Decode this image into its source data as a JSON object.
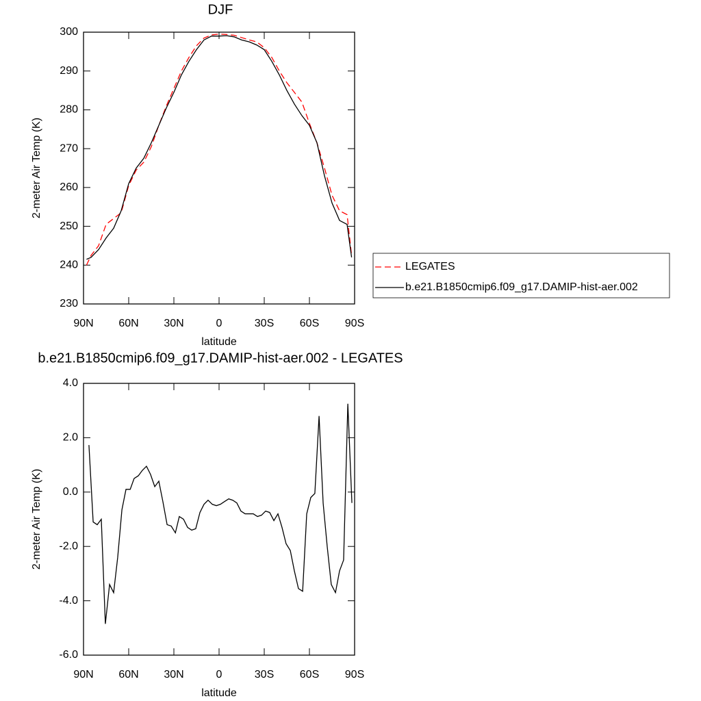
{
  "chart_data": [
    {
      "type": "line",
      "title": "DJF",
      "xlabel": "latitude",
      "ylabel": "2-meter Air Temp (K)",
      "x": [
        88,
        85,
        80,
        75,
        70,
        65,
        60,
        55,
        50,
        45,
        40,
        35,
        30,
        25,
        20,
        15,
        10,
        5,
        0,
        -5,
        -10,
        -15,
        -20,
        -25,
        -30,
        -35,
        -40,
        -45,
        -50,
        -55,
        -60,
        -65,
        -70,
        -75,
        -80,
        -85,
        -88
      ],
      "series": [
        {
          "name": "LEGATES",
          "color": "#ff0000",
          "line_style": "dashed",
          "values": [
            240,
            242.5,
            245,
            250.5,
            252,
            253.5,
            260.5,
            264.5,
            266.5,
            270.5,
            276,
            281,
            285.5,
            290,
            293.5,
            296.5,
            298.5,
            299.3,
            299.5,
            299.4,
            299.2,
            298.6,
            298,
            297.5,
            296,
            293.5,
            290,
            287,
            284.5,
            282,
            276.5,
            271.5,
            265,
            258,
            254,
            253,
            242.5
          ]
        },
        {
          "name": "b.e21.B1850cmip6.f09_g17.DAMIP-hist-aer.002",
          "color": "#000000",
          "line_style": "solid",
          "values": [
            241.5,
            242,
            244,
            247,
            249.5,
            254,
            261,
            265,
            267.5,
            271.5,
            276,
            280.5,
            284.5,
            289,
            292.5,
            295.5,
            298,
            299,
            299,
            299.1,
            298.8,
            298,
            297.5,
            296.7,
            295.5,
            292.5,
            289,
            285,
            281.5,
            278.5,
            276,
            271.5,
            263,
            256,
            251.5,
            250.5,
            242
          ]
        }
      ],
      "xlim": [
        90,
        -90
      ],
      "xticks": [
        {
          "value": 90,
          "label": "90N"
        },
        {
          "value": 60,
          "label": "60N"
        },
        {
          "value": 30,
          "label": "30N"
        },
        0,
        {
          "value": -30,
          "label": "30S"
        },
        {
          "value": -60,
          "label": "60S"
        },
        {
          "value": -90,
          "label": "90S"
        }
      ],
      "ylim": [
        230,
        300
      ],
      "yticks": [
        230,
        240,
        250,
        260,
        270,
        280,
        290,
        300
      ],
      "legend": "right"
    },
    {
      "type": "line",
      "title": "b.e21.B1850cmip6.f09_g17.DAMIP-hist-aer.002 - LEGATES",
      "xlabel": "latitude",
      "ylabel": "2-meter Air Temp (K)",
      "x": [
        86.4,
        83.6,
        80.9,
        78.2,
        75.5,
        72.7,
        70,
        67.3,
        64.5,
        61.8,
        59,
        56.4,
        53.6,
        50.9,
        48.2,
        45.5,
        42.7,
        40,
        37.3,
        34.5,
        31.8,
        29,
        26.4,
        23.6,
        20.9,
        18.2,
        15.5,
        12.7,
        10,
        7.3,
        4.5,
        1.8,
        -0.9,
        -3.6,
        -6.4,
        -9.1,
        -11.8,
        -14.5,
        -17.3,
        -20,
        -22.7,
        -25.5,
        -28.2,
        -30.9,
        -33.6,
        -36.4,
        -39.1,
        -41.8,
        -44.5,
        -47.3,
        -50,
        -52.7,
        -55.5,
        -58.2,
        -60.9,
        -63.6,
        -66.4,
        -69.1,
        -71.8,
        -74.5,
        -77.3,
        -80,
        -82.7,
        -85.5,
        -88.2
      ],
      "series": [
        {
          "name": "b.e21.B1850cmip6.f09_g17.DAMIP-hist-aer.002 - LEGATES",
          "color": "#000000",
          "line_style": "solid",
          "values": [
            1.73,
            -1.1,
            -1.2,
            -1.0,
            -4.85,
            -3.4,
            -3.7,
            -2.4,
            -0.65,
            0.1,
            0.1,
            0.5,
            0.6,
            0.8,
            0.95,
            0.65,
            0.2,
            0.4,
            -0.35,
            -1.2,
            -1.25,
            -1.5,
            -0.9,
            -1.0,
            -1.3,
            -1.4,
            -1.35,
            -0.75,
            -0.45,
            -0.3,
            -0.45,
            -0.5,
            -0.45,
            -0.35,
            -0.25,
            -0.3,
            -0.4,
            -0.7,
            -0.8,
            -0.8,
            -0.8,
            -0.9,
            -0.85,
            -0.7,
            -0.75,
            -1.05,
            -0.8,
            -1.3,
            -1.9,
            -2.15,
            -2.9,
            -3.55,
            -3.65,
            -0.8,
            -0.2,
            -0.05,
            2.8,
            -0.4,
            -2.0,
            -3.4,
            -3.7,
            -2.9,
            -2.5,
            3.25,
            -0.4
          ]
        }
      ],
      "xlim": [
        90,
        -90
      ],
      "xticks": [
        {
          "value": 90,
          "label": "90N"
        },
        {
          "value": 60,
          "label": "60N"
        },
        {
          "value": 30,
          "label": "30N"
        },
        0,
        {
          "value": -30,
          "label": "30S"
        },
        {
          "value": -60,
          "label": "60S"
        },
        {
          "value": -90,
          "label": "90S"
        }
      ],
      "ylim": [
        -6,
        4
      ],
      "yticks": [
        {
          "value": -6,
          "label": "-6.0"
        },
        {
          "value": -4,
          "label": "-4.0"
        },
        {
          "value": -2,
          "label": "-2.0"
        },
        {
          "value": 0,
          "label": "0.0"
        },
        {
          "value": 2,
          "label": "2.0"
        },
        {
          "value": 4,
          "label": "4.0"
        }
      ]
    }
  ]
}
